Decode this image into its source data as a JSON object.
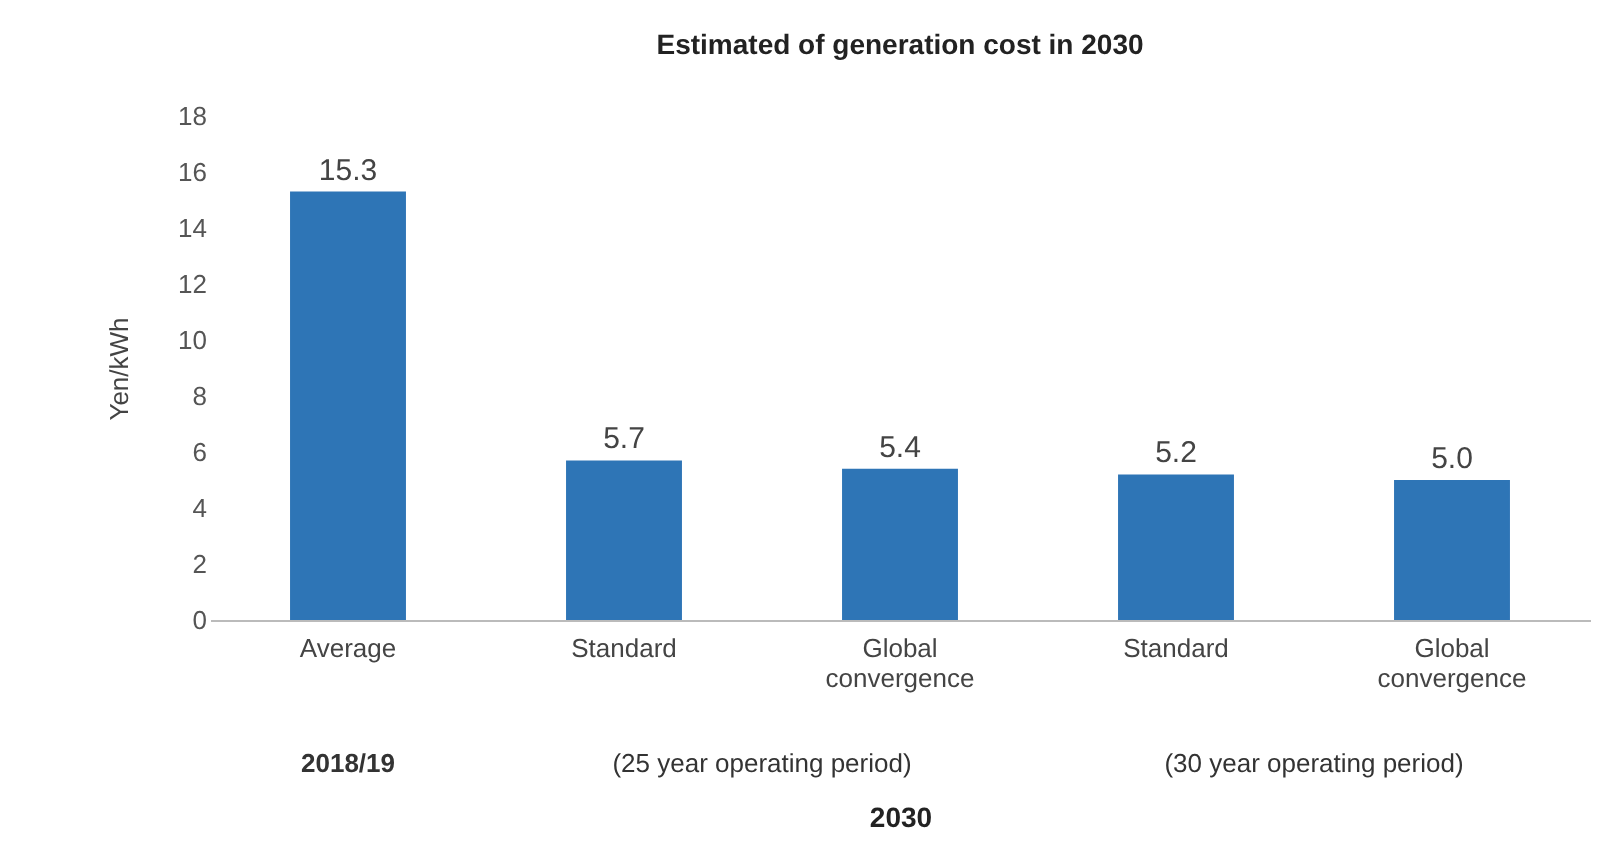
{
  "chart_data": {
    "type": "bar",
    "title": "Estimated of generation cost in 2030",
    "xlabel": "2030",
    "ylabel": "Yen/kWh",
    "categories": [
      "Average",
      "Standard",
      "Global convergence",
      "Standard",
      "Global convergence"
    ],
    "values": [
      15.3,
      5.7,
      5.4,
      5.2,
      5.0
    ],
    "value_labels": [
      "15.3",
      "5.7",
      "5.4",
      "5.2",
      "5.0"
    ],
    "color": "#2e75b6",
    "ylim": [
      0,
      18
    ],
    "yticks": [
      0,
      2,
      4,
      6,
      8,
      10,
      12,
      14,
      16,
      18
    ],
    "grid": false,
    "annotations": [
      "2018/19",
      "(25 year operating period)",
      "(30 year operating period)"
    ]
  }
}
